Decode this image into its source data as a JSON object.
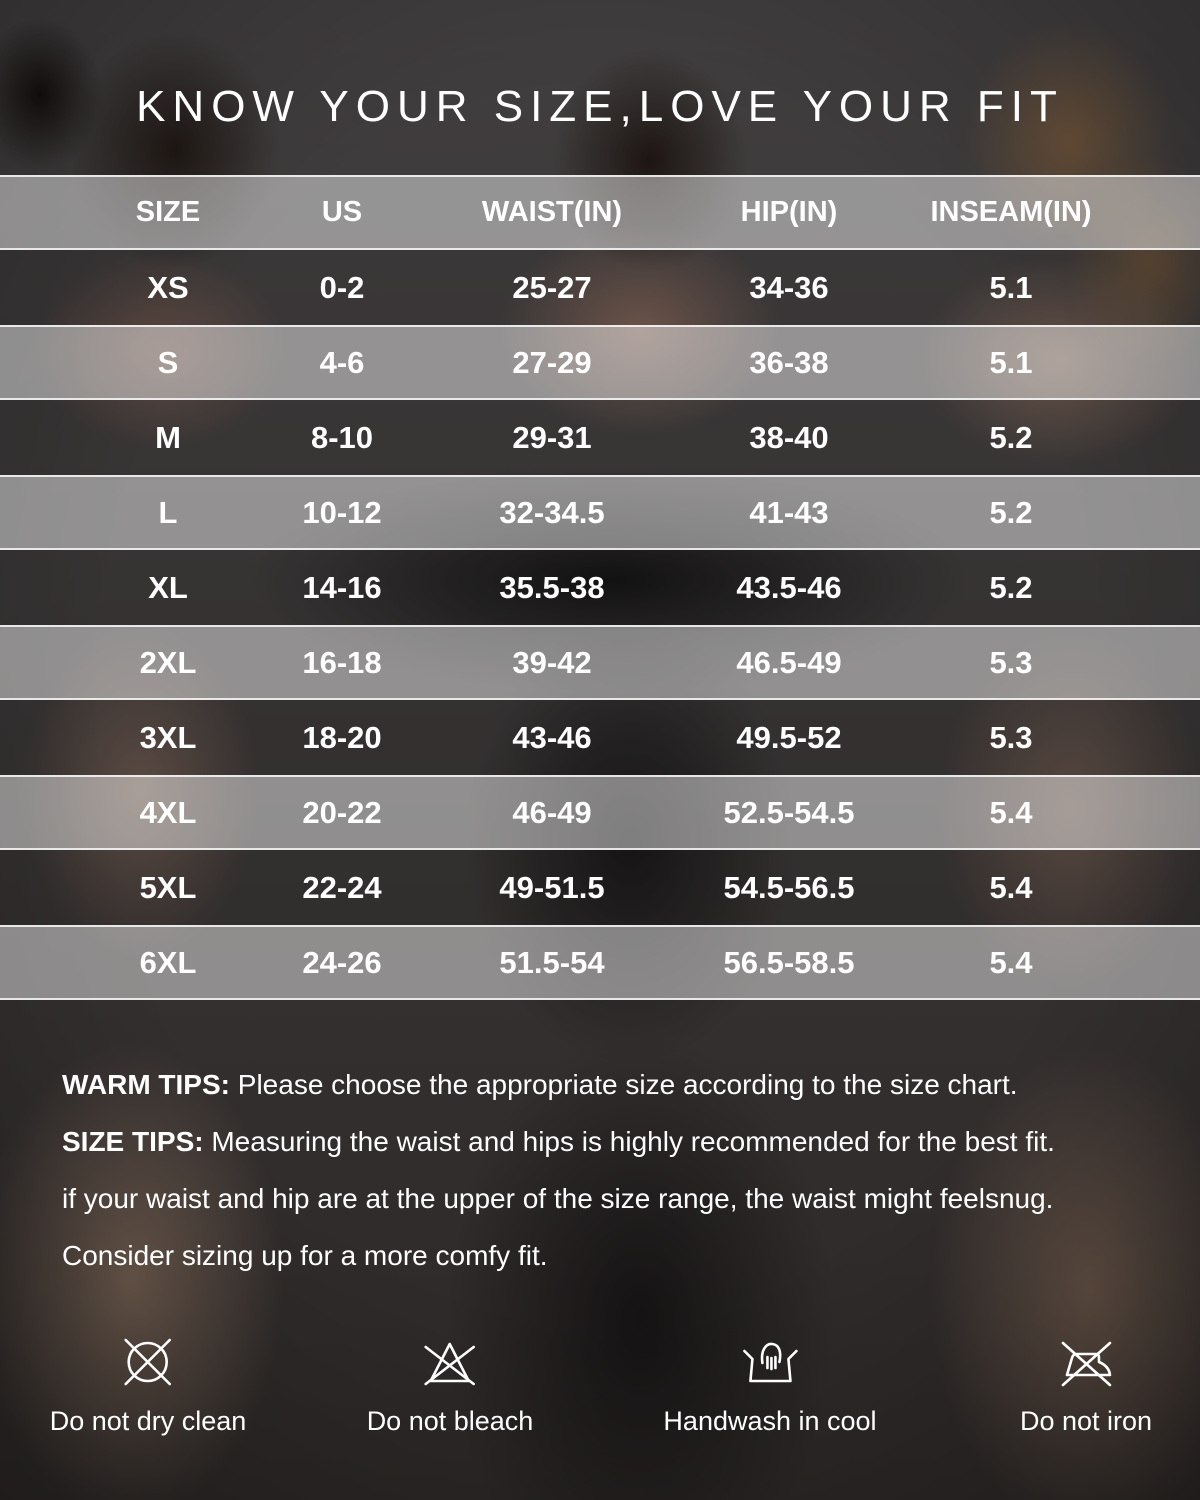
{
  "title": "KNOW YOUR SIZE,LOVE YOUR FIT",
  "chart_data": {
    "type": "table",
    "title": "KNOW YOUR SIZE,LOVE YOUR FIT",
    "columns": [
      "SIZE",
      "US",
      "WAIST(IN)",
      "HIP(IN)",
      "INSEAM(IN)"
    ],
    "rows": [
      [
        "XS",
        "0-2",
        "25-27",
        "34-36",
        "5.1"
      ],
      [
        "S",
        "4-6",
        "27-29",
        "36-38",
        "5.1"
      ],
      [
        "M",
        "8-10",
        "29-31",
        "38-40",
        "5.2"
      ],
      [
        "L",
        "10-12",
        "32-34.5",
        "41-43",
        "5.2"
      ],
      [
        "XL",
        "14-16",
        "35.5-38",
        "43.5-46",
        "5.2"
      ],
      [
        "2XL",
        "16-18",
        "39-42",
        "46.5-49",
        "5.3"
      ],
      [
        "3XL",
        "18-20",
        "43-46",
        "49.5-52",
        "5.3"
      ],
      [
        "4XL",
        "20-22",
        "46-49",
        "52.5-54.5",
        "5.4"
      ],
      [
        "5XL",
        "22-24",
        "49-51.5",
        "54.5-56.5",
        "5.4"
      ],
      [
        "6XL",
        "24-26",
        "51.5-54",
        "56.5-58.5",
        "5.4"
      ]
    ]
  },
  "tips": {
    "warm_label": "WARM TIPS:",
    "warm_text": " Please choose the appropriate size according to the size chart.",
    "size_label": "SIZE TIPS:",
    "size_text": " Measuring the waist and hips is highly recommended for the best fit.",
    "line3": "if your waist and hip are at the upper of the size range, the waist might feelsnug.",
    "line4": "Consider sizing up for a more comfy fit."
  },
  "care": [
    {
      "icon": "do-not-dry-clean-icon",
      "label": "Do not dry clean"
    },
    {
      "icon": "do-not-bleach-icon",
      "label": "Do not bleach"
    },
    {
      "icon": "handwash-icon",
      "label": "Handwash in cool"
    },
    {
      "icon": "do-not-iron-icon",
      "label": "Do not iron"
    }
  ],
  "colors": {
    "text": "#ffffff",
    "backdrop": "#3a3737",
    "band_overlay": "#ffffff"
  }
}
